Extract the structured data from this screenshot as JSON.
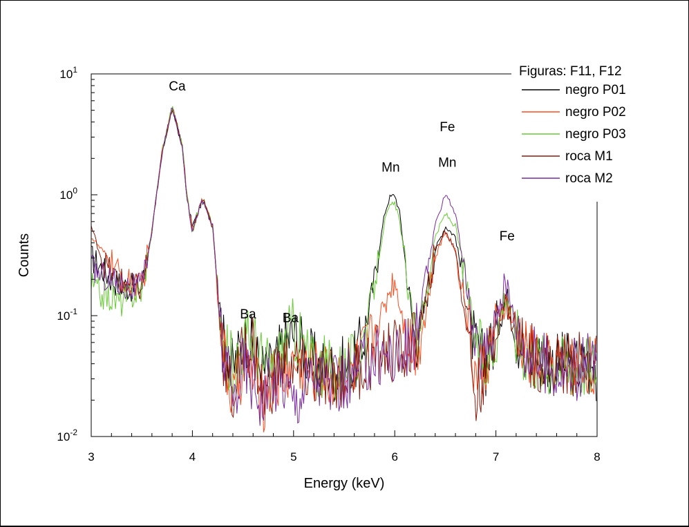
{
  "chart_data": {
    "type": "line",
    "title": "",
    "xlabel": "Energy (keV)",
    "ylabel": "Counts",
    "xlim": [
      3,
      8
    ],
    "ylim": [
      0.01,
      10
    ],
    "y_scale": "log",
    "grid": false,
    "x_ticks": [
      "3",
      "4",
      "5",
      "6",
      "7",
      "8"
    ],
    "y_ticks": [
      {
        "value": 10,
        "base": "10",
        "exp": "1"
      },
      {
        "value": 1,
        "base": "10",
        "exp": "0"
      },
      {
        "value": 0.1,
        "base": "10",
        "exp": "-1"
      },
      {
        "value": 0.01,
        "base": "10",
        "exp": "-2"
      }
    ],
    "legend": {
      "title": "Figuras: F11, F12",
      "position": "top-right"
    },
    "series": [
      {
        "name": "negro P01",
        "color": "#000000",
        "x": [
          3.0,
          3.1,
          3.2,
          3.3,
          3.4,
          3.5,
          3.6,
          3.7,
          3.8,
          3.9,
          3.95,
          4.0,
          4.05,
          4.1,
          4.2,
          4.3,
          4.4,
          4.5,
          4.55,
          4.6,
          4.7,
          4.8,
          4.9,
          5.0,
          5.2,
          5.4,
          5.6,
          5.7,
          5.8,
          5.9,
          5.95,
          6.0,
          6.05,
          6.1,
          6.2,
          6.3,
          6.4,
          6.5,
          6.6,
          6.7,
          6.8,
          6.9,
          7.0,
          7.1,
          7.2,
          7.3,
          7.5,
          7.7,
          8.0
        ],
        "y": [
          0.3,
          0.25,
          0.2,
          0.18,
          0.17,
          0.17,
          0.5,
          2.2,
          5.2,
          2.5,
          0.9,
          0.55,
          0.7,
          0.9,
          0.55,
          0.06,
          0.035,
          0.06,
          0.07,
          0.05,
          0.035,
          0.035,
          0.06,
          0.07,
          0.04,
          0.035,
          0.04,
          0.07,
          0.2,
          0.7,
          0.95,
          1.0,
          0.7,
          0.3,
          0.06,
          0.12,
          0.35,
          0.55,
          0.45,
          0.15,
          0.05,
          0.04,
          0.07,
          0.15,
          0.07,
          0.05,
          0.04,
          0.04,
          0.035
        ]
      },
      {
        "name": "negro P02",
        "color": "#ff4a1c",
        "x": [
          3.0,
          3.1,
          3.2,
          3.3,
          3.4,
          3.5,
          3.6,
          3.7,
          3.8,
          3.9,
          3.95,
          4.0,
          4.05,
          4.1,
          4.2,
          4.3,
          4.4,
          4.5,
          4.6,
          4.7,
          4.8,
          4.9,
          5.0,
          5.2,
          5.4,
          5.6,
          5.7,
          5.8,
          5.9,
          5.95,
          6.0,
          6.05,
          6.1,
          6.2,
          6.3,
          6.4,
          6.5,
          6.6,
          6.7,
          6.8,
          6.9,
          7.0,
          7.1,
          7.2,
          7.3,
          7.5,
          7.7,
          8.0
        ],
        "y": [
          0.45,
          0.35,
          0.28,
          0.2,
          0.18,
          0.17,
          0.5,
          2.3,
          5.5,
          2.6,
          0.95,
          0.5,
          0.7,
          0.95,
          0.55,
          0.05,
          0.02,
          0.04,
          0.03,
          0.02,
          0.03,
          0.03,
          0.04,
          0.035,
          0.03,
          0.035,
          0.05,
          0.07,
          0.12,
          0.17,
          0.2,
          0.13,
          0.08,
          0.05,
          0.1,
          0.3,
          0.5,
          0.35,
          0.12,
          0.03,
          0.04,
          0.08,
          0.13,
          0.07,
          0.05,
          0.04,
          0.04,
          0.04
        ]
      },
      {
        "name": "negro P03",
        "color": "#66cc33",
        "x": [
          3.0,
          3.1,
          3.2,
          3.3,
          3.4,
          3.5,
          3.6,
          3.7,
          3.8,
          3.9,
          3.95,
          4.0,
          4.05,
          4.1,
          4.2,
          4.3,
          4.4,
          4.5,
          4.6,
          4.7,
          4.8,
          4.9,
          5.0,
          5.2,
          5.4,
          5.6,
          5.7,
          5.8,
          5.9,
          5.95,
          6.0,
          6.05,
          6.1,
          6.2,
          6.3,
          6.4,
          6.5,
          6.6,
          6.7,
          6.8,
          6.9,
          7.0,
          7.1,
          7.2,
          7.3,
          7.5,
          7.7,
          8.0
        ],
        "y": [
          0.18,
          0.15,
          0.14,
          0.13,
          0.15,
          0.16,
          0.5,
          2.3,
          5.4,
          2.6,
          0.95,
          0.5,
          0.7,
          0.95,
          0.55,
          0.05,
          0.04,
          0.06,
          0.07,
          0.04,
          0.035,
          0.06,
          0.08,
          0.04,
          0.035,
          0.04,
          0.07,
          0.18,
          0.6,
          0.8,
          0.85,
          0.6,
          0.28,
          0.06,
          0.13,
          0.45,
          0.7,
          0.55,
          0.2,
          0.06,
          0.04,
          0.07,
          0.16,
          0.07,
          0.05,
          0.04,
          0.04,
          0.04
        ]
      },
      {
        "name": "roca M1",
        "color": "#8b1a0a",
        "x": [
          3.0,
          3.1,
          3.2,
          3.3,
          3.4,
          3.5,
          3.6,
          3.7,
          3.8,
          3.9,
          3.95,
          4.0,
          4.05,
          4.1,
          4.2,
          4.3,
          4.4,
          4.5,
          4.6,
          4.7,
          4.8,
          4.9,
          5.0,
          5.2,
          5.4,
          5.6,
          5.7,
          5.8,
          5.9,
          6.0,
          6.1,
          6.2,
          6.3,
          6.4,
          6.5,
          6.6,
          6.7,
          6.8,
          6.9,
          7.0,
          7.1,
          7.2,
          7.3,
          7.5,
          7.7,
          8.0
        ],
        "y": [
          0.55,
          0.3,
          0.22,
          0.19,
          0.17,
          0.17,
          0.5,
          2.2,
          5.3,
          2.5,
          0.9,
          0.5,
          0.7,
          0.95,
          0.55,
          0.05,
          0.02,
          0.05,
          0.06,
          0.02,
          0.03,
          0.04,
          0.04,
          0.03,
          0.03,
          0.035,
          0.04,
          0.045,
          0.05,
          0.05,
          0.05,
          0.06,
          0.12,
          0.35,
          0.5,
          0.35,
          0.1,
          0.02,
          0.04,
          0.08,
          0.13,
          0.07,
          0.05,
          0.04,
          0.04,
          0.04
        ]
      },
      {
        "name": "roca M2",
        "color": "#7a2aa0",
        "x": [
          3.0,
          3.1,
          3.2,
          3.3,
          3.4,
          3.5,
          3.6,
          3.7,
          3.8,
          3.9,
          3.95,
          4.0,
          4.05,
          4.1,
          4.2,
          4.3,
          4.4,
          4.5,
          4.6,
          4.7,
          4.8,
          4.9,
          5.0,
          5.2,
          5.4,
          5.6,
          5.7,
          5.8,
          5.9,
          6.0,
          6.1,
          6.2,
          6.3,
          6.4,
          6.5,
          6.6,
          6.7,
          6.8,
          6.9,
          7.0,
          7.1,
          7.2,
          7.3,
          7.5,
          7.7,
          8.0
        ],
        "y": [
          0.25,
          0.22,
          0.2,
          0.18,
          0.17,
          0.17,
          0.5,
          2.2,
          5.3,
          2.5,
          0.9,
          0.5,
          0.7,
          0.9,
          0.55,
          0.05,
          0.02,
          0.04,
          0.03,
          0.02,
          0.03,
          0.03,
          0.02,
          0.035,
          0.025,
          0.03,
          0.04,
          0.045,
          0.05,
          0.045,
          0.05,
          0.06,
          0.18,
          0.55,
          1.05,
          0.7,
          0.2,
          0.05,
          0.05,
          0.1,
          0.19,
          0.08,
          0.05,
          0.04,
          0.035,
          0.04
        ]
      }
    ],
    "annotations": [
      {
        "text": "Ca",
        "x": 3.85,
        "y": 7.3
      },
      {
        "text": "Ba",
        "x": 4.55,
        "y": 0.095
      },
      {
        "text": "Ba",
        "x": 4.97,
        "y": 0.088
      },
      {
        "text": "Mn",
        "x": 5.96,
        "y": 1.55
      },
      {
        "text": "Fe",
        "x": 6.52,
        "y": 3.35
      },
      {
        "text": "Mn",
        "x": 6.52,
        "y": 1.7
      },
      {
        "text": "Fe",
        "x": 7.11,
        "y": 0.42
      }
    ]
  }
}
